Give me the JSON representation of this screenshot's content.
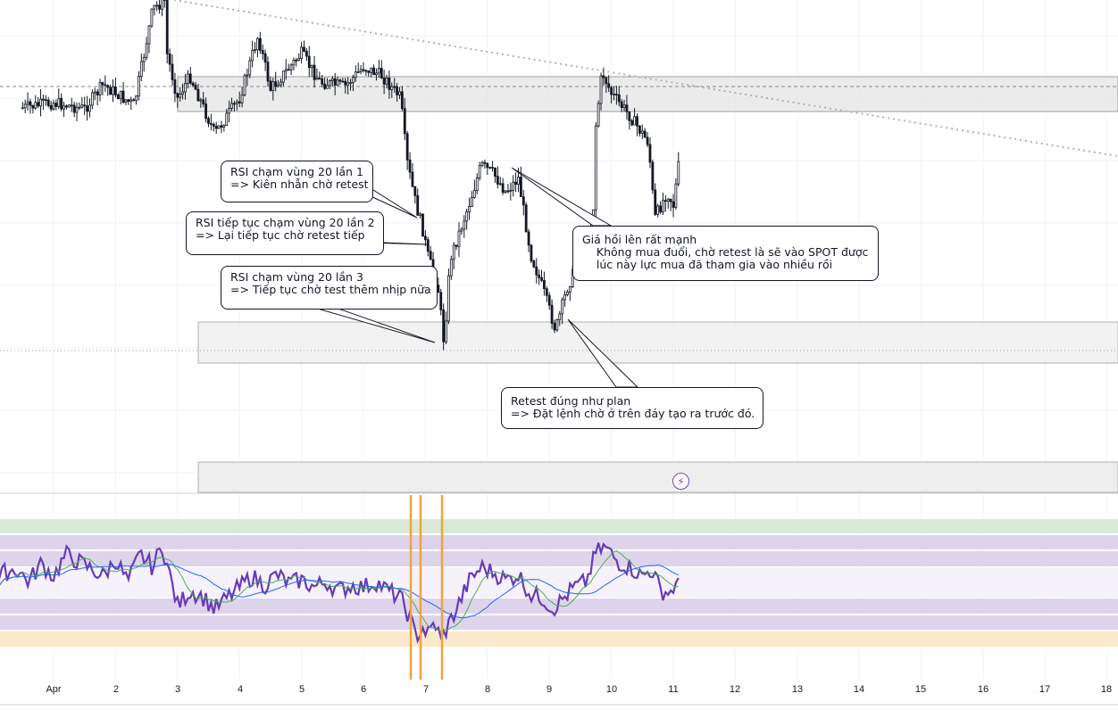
{
  "chart_data": [
    {
      "type": "candlestick",
      "title": "",
      "x_tick_labels": [
        "Apr",
        "2",
        "3",
        "4",
        "5",
        "6",
        "7",
        "8",
        "9",
        "10",
        "11",
        "12",
        "13",
        "14",
        "15",
        "16",
        "17",
        "18"
      ],
      "price_path": [
        [
          0.5,
          121
        ],
        [
          1.0,
          115
        ],
        [
          1.5,
          122
        ],
        [
          1.8,
          95
        ],
        [
          2.3,
          118
        ],
        [
          2.6,
          10
        ],
        [
          2.8,
          0
        ],
        [
          2.83,
          60
        ],
        [
          3.0,
          110
        ],
        [
          3.2,
          85
        ],
        [
          3.6,
          150
        ],
        [
          4.0,
          110
        ],
        [
          4.3,
          40
        ],
        [
          4.5,
          100
        ],
        [
          5.0,
          60
        ],
        [
          5.3,
          92
        ],
        [
          5.7,
          97
        ],
        [
          6.0,
          75
        ],
        [
          6.3,
          85
        ],
        [
          6.6,
          110
        ],
        [
          6.7,
          180
        ],
        [
          6.85,
          230
        ],
        [
          6.95,
          255
        ],
        [
          7.05,
          290
        ],
        [
          7.2,
          320
        ],
        [
          7.3,
          385
        ],
        [
          7.4,
          290
        ],
        [
          7.7,
          230
        ],
        [
          7.9,
          185
        ],
        [
          8.1,
          195
        ],
        [
          8.3,
          215
        ],
        [
          8.5,
          200
        ],
        [
          8.7,
          285
        ],
        [
          8.9,
          325
        ],
        [
          9.1,
          370
        ],
        [
          9.3,
          320
        ],
        [
          9.5,
          290
        ],
        [
          9.7,
          250
        ],
        [
          9.75,
          140
        ],
        [
          9.85,
          80
        ],
        [
          10.0,
          105
        ],
        [
          10.3,
          130
        ],
        [
          10.6,
          160
        ],
        [
          10.7,
          245
        ],
        [
          10.9,
          215
        ],
        [
          11.0,
          230
        ],
        [
          11.1,
          178
        ]
      ],
      "zones": [
        "resistance",
        "support",
        "lower"
      ],
      "trendline": "descending dotted",
      "annotations": [
        {
          "line1": "RSI chạm vùng 20 lần 1",
          "line2": "=> Kiên nhẫn chờ retest"
        },
        {
          "line1": "RSI tiếp tục chạm vùng 20 lần 2",
          "line2": "=> Lại tiếp tục chờ retest tiếp"
        },
        {
          "line1": "RSI chạm vùng 20 lần 3",
          "line2": "=> Tiếp tục chờ test thêm nhịp nữa"
        },
        {
          "line1": "Giá hồi lên rất mạnh",
          "line2": "    Không mua đuổi, chờ retest là sẽ vào SPOT được",
          "line3": "    lúc này lực mua đã tham gia vào nhiều rồi"
        },
        {
          "line1": "Retest đúng như plan",
          "line2": "=> Đặt lệnh chờ ở trên đáy tạo ra trước đó."
        }
      ]
    },
    {
      "type": "line",
      "series": [
        {
          "key": "rsi",
          "color": "#673ab7"
        },
        {
          "key": "rsi_ma",
          "color": "#4caf50"
        },
        {
          "key": "rsi_slow_ma",
          "color": "#2962ff"
        }
      ],
      "rsi_path": [
        [
          0.0,
          52
        ],
        [
          0.2,
          60
        ],
        [
          0.4,
          62
        ],
        [
          0.6,
          55
        ],
        [
          0.8,
          65
        ],
        [
          1.0,
          58
        ],
        [
          1.2,
          70
        ],
        [
          1.4,
          66
        ],
        [
          1.6,
          62
        ],
        [
          1.8,
          58
        ],
        [
          2.0,
          67
        ],
        [
          2.2,
          55
        ],
        [
          2.4,
          70
        ],
        [
          2.6,
          63
        ],
        [
          2.75,
          75
        ],
        [
          2.85,
          62
        ],
        [
          3.0,
          42
        ],
        [
          3.2,
          50
        ],
        [
          3.4,
          47
        ],
        [
          3.6,
          40
        ],
        [
          3.8,
          46
        ],
        [
          4.0,
          52
        ],
        [
          4.2,
          58
        ],
        [
          4.4,
          53
        ],
        [
          4.6,
          59
        ],
        [
          4.8,
          54
        ],
        [
          5.0,
          56
        ],
        [
          5.2,
          52
        ],
        [
          5.4,
          55
        ],
        [
          5.6,
          50
        ],
        [
          5.8,
          53
        ],
        [
          6.0,
          52
        ],
        [
          6.2,
          55
        ],
        [
          6.4,
          50
        ],
        [
          6.6,
          46
        ],
        [
          6.75,
          35
        ],
        [
          6.85,
          25
        ],
        [
          6.95,
          30
        ],
        [
          7.05,
          26
        ],
        [
          7.15,
          33
        ],
        [
          7.25,
          23
        ],
        [
          7.35,
          30
        ],
        [
          7.5,
          40
        ],
        [
          7.7,
          55
        ],
        [
          7.9,
          63
        ],
        [
          8.1,
          60
        ],
        [
          8.3,
          56
        ],
        [
          8.5,
          59
        ],
        [
          8.7,
          48
        ],
        [
          8.9,
          46
        ],
        [
          9.05,
          40
        ],
        [
          9.2,
          45
        ],
        [
          9.4,
          52
        ],
        [
          9.6,
          55
        ],
        [
          9.75,
          71
        ],
        [
          9.9,
          74
        ],
        [
          10.1,
          66
        ],
        [
          10.3,
          63
        ],
        [
          10.5,
          58
        ],
        [
          10.65,
          62
        ],
        [
          10.8,
          50
        ],
        [
          10.95,
          49
        ],
        [
          11.0,
          52
        ],
        [
          11.1,
          53
        ]
      ],
      "bands": [
        "overbought",
        "upper",
        "neutral",
        "lower",
        "oversold"
      ],
      "markers": [
        6.75,
        6.9,
        7.25
      ]
    }
  ]
}
